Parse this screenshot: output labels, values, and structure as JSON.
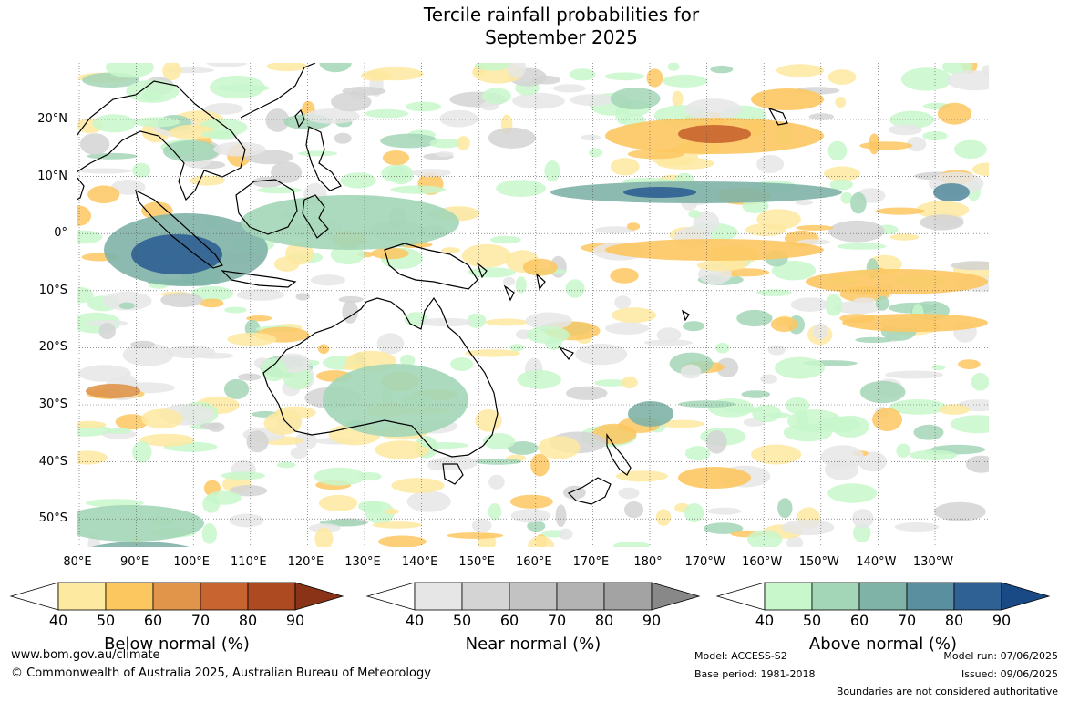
{
  "title": {
    "line1": "Tercile rainfall probabilities for",
    "line2": "September 2025"
  },
  "lat_labels": [
    "20°N",
    "10°N",
    "0°",
    "10°S",
    "20°S",
    "30°S",
    "40°S",
    "50°S"
  ],
  "lon_labels": [
    "80°E",
    "90°E",
    "100°E",
    "110°E",
    "120°E",
    "130°E",
    "140°E",
    "150°E",
    "160°E",
    "170°E",
    "180°",
    "170°W",
    "160°W",
    "150°W",
    "140°W",
    "130°W"
  ],
  "legends": [
    {
      "label": "Below normal (%)",
      "ticks": [
        "40",
        "50",
        "60",
        "70",
        "80",
        "90"
      ],
      "colors": [
        "#ffffff",
        "#fee9a0",
        "#fdc760",
        "#e0954a",
        "#c8642f",
        "#ad4a22",
        "#8b3316"
      ]
    },
    {
      "label": "Near normal (%)",
      "ticks": [
        "40",
        "50",
        "60",
        "70",
        "80",
        "90"
      ],
      "colors": [
        "#ffffff",
        "#e6e6e6",
        "#d4d4d4",
        "#c2c2c2",
        "#b3b3b3",
        "#a3a3a3",
        "#888888"
      ]
    },
    {
      "label": "Above normal (%)",
      "ticks": [
        "40",
        "50",
        "60",
        "70",
        "80",
        "90"
      ],
      "colors": [
        "#ffffff",
        "#c8f7cb",
        "#a3d6b7",
        "#7fb3a8",
        "#5a8fa0",
        "#2f6194",
        "#1a4a85"
      ]
    }
  ],
  "footer": {
    "url": "www.bom.gov.au/climate",
    "copyright": "© Commonwealth of Australia 2025, Australian Bureau of Meteorology",
    "model": "Model: ACCESS-S2",
    "base_period": "Base period: 1981-2018",
    "model_run": "Model run: 07/06/2025",
    "issued": "Issued: 09/06/2025",
    "disclaimer": "Boundaries are not considered authoritative"
  }
}
